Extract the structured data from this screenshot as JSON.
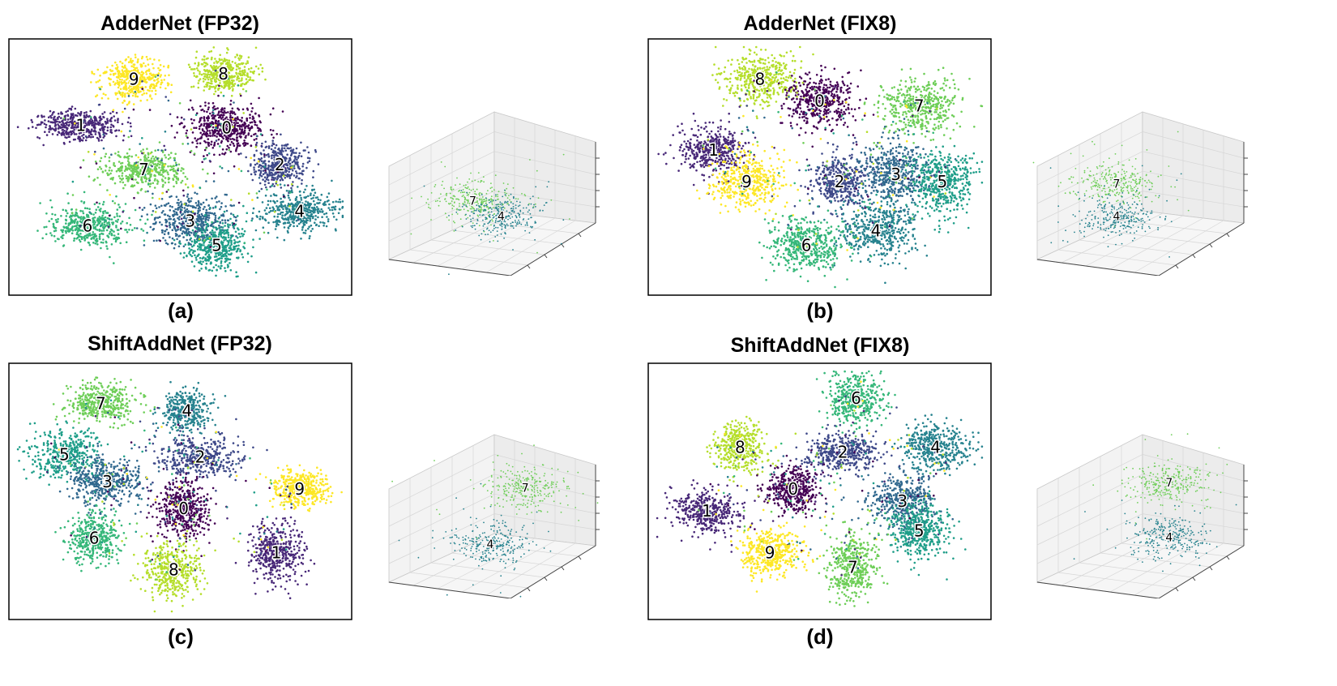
{
  "palette": {
    "0": "#440154",
    "1": "#482878",
    "2": "#3e4989",
    "3": "#31688e",
    "4": "#26828e",
    "5": "#1f9e89",
    "6": "#35b779",
    "7": "#6ece58",
    "8": "#b5de2b",
    "9": "#fde725"
  },
  "chart_data": [
    {
      "id": "a",
      "type": "scatter",
      "title": "AdderNet (FP32)",
      "subcaption": "(a)",
      "clusters": [
        {
          "label": "9",
          "x": 0.36,
          "y": 0.14,
          "sx": 0.085,
          "sy": 0.075,
          "n": 420
        },
        {
          "label": "8",
          "x": 0.63,
          "y": 0.12,
          "sx": 0.08,
          "sy": 0.07,
          "n": 420
        },
        {
          "label": "1",
          "x": 0.2,
          "y": 0.33,
          "sx": 0.11,
          "sy": 0.055,
          "n": 420
        },
        {
          "label": "0",
          "x": 0.64,
          "y": 0.34,
          "sx": 0.1,
          "sy": 0.085,
          "n": 500
        },
        {
          "label": "2",
          "x": 0.8,
          "y": 0.49,
          "sx": 0.075,
          "sy": 0.075,
          "n": 380
        },
        {
          "label": "7",
          "x": 0.39,
          "y": 0.51,
          "sx": 0.12,
          "sy": 0.065,
          "n": 420
        },
        {
          "label": "6",
          "x": 0.22,
          "y": 0.74,
          "sx": 0.11,
          "sy": 0.08,
          "n": 440
        },
        {
          "label": "3",
          "x": 0.53,
          "y": 0.72,
          "sx": 0.11,
          "sy": 0.09,
          "n": 460
        },
        {
          "label": "4",
          "x": 0.86,
          "y": 0.68,
          "sx": 0.1,
          "sy": 0.075,
          "n": 440
        },
        {
          "label": "5",
          "x": 0.61,
          "y": 0.82,
          "sx": 0.08,
          "sy": 0.09,
          "n": 440
        }
      ],
      "inset": {
        "clusters": [
          {
            "label": "7",
            "x": 0.42,
            "y": 0.56
          },
          {
            "label": "4",
            "x": 0.55,
            "y": 0.65
          }
        ]
      }
    },
    {
      "id": "b",
      "type": "scatter",
      "title": "AdderNet (FIX8)",
      "subcaption": "(b)",
      "clusters": [
        {
          "label": "8",
          "x": 0.32,
          "y": 0.14,
          "sx": 0.1,
          "sy": 0.09,
          "n": 440
        },
        {
          "label": "0",
          "x": 0.5,
          "y": 0.23,
          "sx": 0.09,
          "sy": 0.1,
          "n": 440
        },
        {
          "label": "7",
          "x": 0.8,
          "y": 0.25,
          "sx": 0.1,
          "sy": 0.1,
          "n": 440
        },
        {
          "label": "1",
          "x": 0.18,
          "y": 0.43,
          "sx": 0.1,
          "sy": 0.09,
          "n": 420
        },
        {
          "label": "9",
          "x": 0.28,
          "y": 0.56,
          "sx": 0.1,
          "sy": 0.1,
          "n": 440
        },
        {
          "label": "2",
          "x": 0.56,
          "y": 0.56,
          "sx": 0.08,
          "sy": 0.1,
          "n": 380
        },
        {
          "label": "3",
          "x": 0.73,
          "y": 0.53,
          "sx": 0.1,
          "sy": 0.12,
          "n": 460
        },
        {
          "label": "5",
          "x": 0.87,
          "y": 0.56,
          "sx": 0.09,
          "sy": 0.12,
          "n": 460
        },
        {
          "label": "4",
          "x": 0.67,
          "y": 0.76,
          "sx": 0.11,
          "sy": 0.11,
          "n": 460
        },
        {
          "label": "6",
          "x": 0.46,
          "y": 0.82,
          "sx": 0.1,
          "sy": 0.1,
          "n": 460
        }
      ],
      "inset": {
        "clusters": [
          {
            "label": "7",
            "x": 0.4,
            "y": 0.46
          },
          {
            "label": "4",
            "x": 0.4,
            "y": 0.65
          }
        ]
      }
    },
    {
      "id": "c",
      "type": "scatter",
      "title": "ShiftAddNet (FP32)",
      "subcaption": "(c)",
      "clusters": [
        {
          "label": "7",
          "x": 0.26,
          "y": 0.14,
          "sx": 0.09,
          "sy": 0.07,
          "n": 420
        },
        {
          "label": "4",
          "x": 0.52,
          "y": 0.17,
          "sx": 0.07,
          "sy": 0.08,
          "n": 380
        },
        {
          "label": "2",
          "x": 0.56,
          "y": 0.36,
          "sx": 0.11,
          "sy": 0.08,
          "n": 420
        },
        {
          "label": "5",
          "x": 0.15,
          "y": 0.35,
          "sx": 0.09,
          "sy": 0.09,
          "n": 420
        },
        {
          "label": "3",
          "x": 0.28,
          "y": 0.46,
          "sx": 0.1,
          "sy": 0.09,
          "n": 440
        },
        {
          "label": "9",
          "x": 0.86,
          "y": 0.49,
          "sx": 0.08,
          "sy": 0.07,
          "n": 400
        },
        {
          "label": "0",
          "x": 0.51,
          "y": 0.57,
          "sx": 0.07,
          "sy": 0.11,
          "n": 440
        },
        {
          "label": "6",
          "x": 0.24,
          "y": 0.69,
          "sx": 0.07,
          "sy": 0.09,
          "n": 400
        },
        {
          "label": "1",
          "x": 0.79,
          "y": 0.75,
          "sx": 0.07,
          "sy": 0.12,
          "n": 420
        },
        {
          "label": "8",
          "x": 0.48,
          "y": 0.82,
          "sx": 0.08,
          "sy": 0.1,
          "n": 420
        }
      ],
      "inset": {
        "clusters": [
          {
            "label": "7",
            "x": 0.66,
            "y": 0.35
          },
          {
            "label": "4",
            "x": 0.5,
            "y": 0.68
          }
        ]
      }
    },
    {
      "id": "d",
      "type": "scatter",
      "title": "ShiftAddNet (FIX8)",
      "subcaption": "(d)",
      "clusters": [
        {
          "label": "6",
          "x": 0.61,
          "y": 0.12,
          "sx": 0.08,
          "sy": 0.09,
          "n": 400
        },
        {
          "label": "8",
          "x": 0.26,
          "y": 0.32,
          "sx": 0.07,
          "sy": 0.09,
          "n": 400
        },
        {
          "label": "2",
          "x": 0.57,
          "y": 0.34,
          "sx": 0.11,
          "sy": 0.07,
          "n": 420
        },
        {
          "label": "4",
          "x": 0.85,
          "y": 0.32,
          "sx": 0.09,
          "sy": 0.09,
          "n": 420
        },
        {
          "label": "0",
          "x": 0.42,
          "y": 0.49,
          "sx": 0.07,
          "sy": 0.09,
          "n": 420
        },
        {
          "label": "3",
          "x": 0.75,
          "y": 0.54,
          "sx": 0.09,
          "sy": 0.1,
          "n": 420
        },
        {
          "label": "1",
          "x": 0.16,
          "y": 0.58,
          "sx": 0.09,
          "sy": 0.08,
          "n": 420
        },
        {
          "label": "5",
          "x": 0.8,
          "y": 0.66,
          "sx": 0.08,
          "sy": 0.11,
          "n": 440
        },
        {
          "label": "9",
          "x": 0.35,
          "y": 0.75,
          "sx": 0.08,
          "sy": 0.09,
          "n": 440
        },
        {
          "label": "7",
          "x": 0.6,
          "y": 0.81,
          "sx": 0.07,
          "sy": 0.12,
          "n": 420
        }
      ],
      "inset": {
        "clusters": [
          {
            "label": "7",
            "x": 0.64,
            "y": 0.32
          },
          {
            "label": "4",
            "x": 0.64,
            "y": 0.64
          }
        ]
      }
    }
  ]
}
